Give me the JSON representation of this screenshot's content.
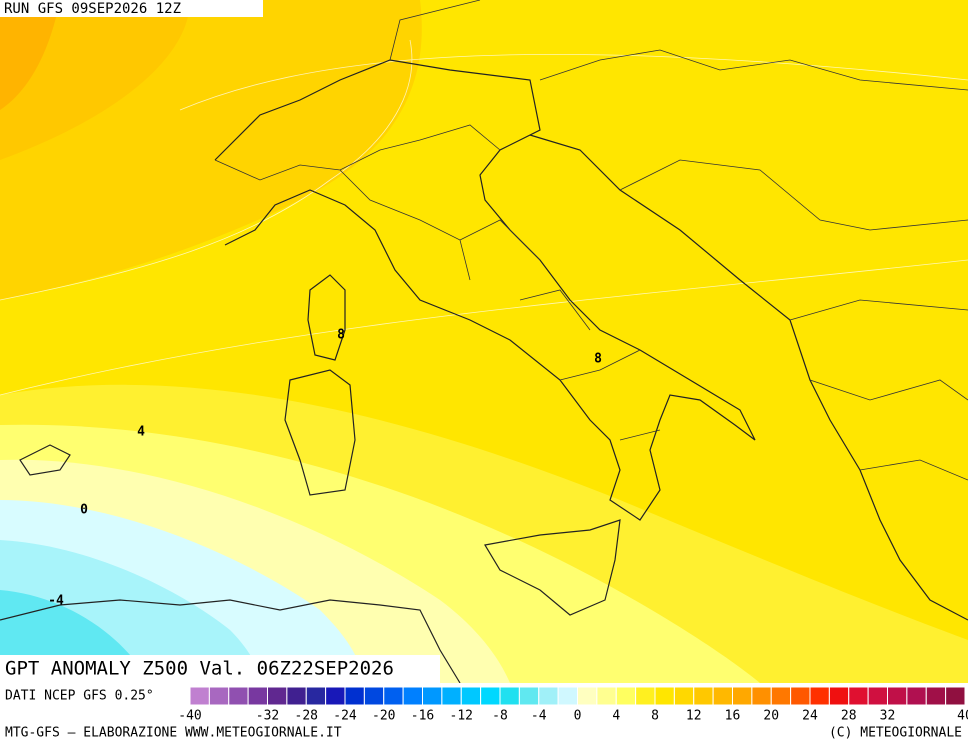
{
  "header": {
    "run": "RUN GFS 09SEP2026 12Z"
  },
  "map": {
    "title": "GPT ANOMALY Z500 Val. 06Z22SEP2026",
    "contour_labels": [
      8,
      8,
      4,
      0,
      -4
    ]
  },
  "colorbar": {
    "source": "DATI NCEP GFS 0.25°",
    "ticks": [
      -40,
      -32,
      -28,
      -24,
      -20,
      -16,
      -12,
      -8,
      -4,
      0,
      4,
      8,
      12,
      16,
      20,
      24,
      28,
      32,
      40
    ],
    "min": -40,
    "max": 40,
    "colors": [
      "#c080d0",
      "#a868c0",
      "#9050b0",
      "#7838a0",
      "#602890",
      "#402090",
      "#2828a0",
      "#1818b8",
      "#0030d0",
      "#0048e0",
      "#0060f0",
      "#0080ff",
      "#0098ff",
      "#00b0ff",
      "#00c8ff",
      "#00d8ff",
      "#20e0f0",
      "#60e8f0",
      "#a0f0f8",
      "#d0f8ff",
      "#ffffc0",
      "#ffff90",
      "#ffff60",
      "#fff020",
      "#ffe600",
      "#ffd800",
      "#ffc800",
      "#ffb800",
      "#ffa800",
      "#ff9000",
      "#ff7800",
      "#ff5800",
      "#ff3000",
      "#f01010",
      "#e01030",
      "#d01040",
      "#c01048",
      "#b01050",
      "#a01048",
      "#901040"
    ]
  },
  "footer": {
    "left": "MTG-GFS — ELABORAZIONE WWW.METEOGIORNALE.IT",
    "right": "(C) METEOGIORNALE"
  }
}
